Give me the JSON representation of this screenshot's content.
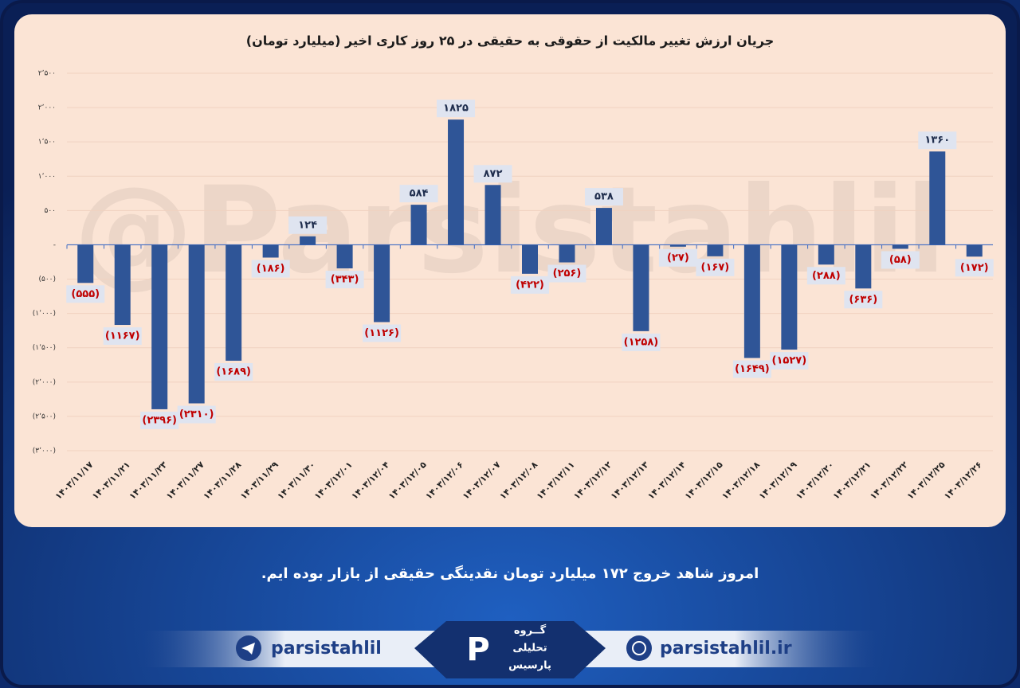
{
  "chart_data": {
    "type": "bar",
    "title": "جریان ارزش تغییر مالکیت از حقوقی به حقیقی در ۲۵ روز کاری اخیر (میلیارد تومان)",
    "watermark": "@Parsistahlil",
    "categories": [
      "۱۴۰۳/۱۱/۱۷",
      "۱۴۰۳/۱۱/۲۱",
      "۱۴۰۳/۱۱/۲۳",
      "۱۴۰۳/۱۱/۲۷",
      "۱۴۰۳/۱۱/۲۸",
      "۱۴۰۳/۱۱/۲۹",
      "۱۴۰۳/۱۱/۳۰",
      "۱۴۰۳/۱۲/۰۱",
      "۱۴۰۳/۱۲/۰۴",
      "۱۴۰۳/۱۲/۰۵",
      "۱۴۰۳/۱۲/۰۶",
      "۱۴۰۳/۱۲/۰۷",
      "۱۴۰۳/۱۲/۰۸",
      "۱۴۰۳/۱۲/۱۱",
      "۱۴۰۳/۱۲/۱۲",
      "۱۴۰۳/۱۲/۱۳",
      "۱۴۰۳/۱۲/۱۴",
      "۱۴۰۳/۱۲/۱۵",
      "۱۴۰۳/۱۲/۱۸",
      "۱۴۰۳/۱۲/۱۹",
      "۱۴۰۳/۱۲/۲۰",
      "۱۴۰۳/۱۲/۲۱",
      "۱۴۰۳/۱۲/۲۲",
      "۱۴۰۳/۱۲/۲۵",
      "۱۴۰۳/۱۲/۲۶"
    ],
    "values": [
      -555,
      -1167,
      -2396,
      -2310,
      -1689,
      -186,
      124,
      -343,
      -1126,
      584,
      1825,
      872,
      -422,
      -256,
      538,
      -1258,
      -27,
      -167,
      -1649,
      -1527,
      -288,
      -636,
      -58,
      1360,
      -172
    ],
    "value_labels": [
      "(۵۵۵)",
      "(۱۱۶۷)",
      "(۲۳۹۶)",
      "(۲۳۱۰)",
      "(۱۶۸۹)",
      "(۱۸۶)",
      "۱۲۴",
      "(۳۴۳)",
      "(۱۱۲۶)",
      "۵۸۴",
      "۱۸۲۵",
      "۸۷۲",
      "(۴۲۲)",
      "(۲۵۶)",
      "۵۳۸",
      "(۱۲۵۸)",
      "(۲۷)",
      "(۱۶۷)",
      "(۱۶۴۹)",
      "(۱۵۲۷)",
      "(۲۸۸)",
      "(۶۳۶)",
      "(۵۸)",
      "۱۳۶۰",
      "(۱۷۲)"
    ],
    "color": "#2f5597",
    "positive_label_color": "#1f2d4d",
    "negative_label_color": "#c00000",
    "ylim": [
      -3000,
      2500
    ],
    "yticks": [
      {
        "value": 2500,
        "label": "۲٬۵۰۰"
      },
      {
        "value": 2000,
        "label": "۲٬۰۰۰"
      },
      {
        "value": 1500,
        "label": "۱٬۵۰۰"
      },
      {
        "value": 1000,
        "label": "۱٬۰۰۰"
      },
      {
        "value": 500,
        "label": "۵۰۰"
      },
      {
        "value": 0,
        "label": "-"
      },
      {
        "value": -500,
        "label": "(۵۰۰)"
      },
      {
        "value": -1000,
        "label": "(۱٬۰۰۰)"
      },
      {
        "value": -1500,
        "label": "(۱٬۵۰۰)"
      },
      {
        "value": -2000,
        "label": "(۲٬۰۰۰)"
      },
      {
        "value": -2500,
        "label": "(۲٬۵۰۰)"
      },
      {
        "value": -3000,
        "label": "(۳٬۰۰۰)"
      }
    ],
    "grid": true
  },
  "footer": {
    "message": "امروز شاهد خروج ۱۷۲ میلیارد تومان نقدینگی حقیقی از بازار بوده ایم.",
    "telegram": "parsistahlil",
    "website": "parsistahlil.ir",
    "logo_line1": "گــروه",
    "logo_line2": "تحلیلی",
    "logo_line3": "پارسیس"
  }
}
